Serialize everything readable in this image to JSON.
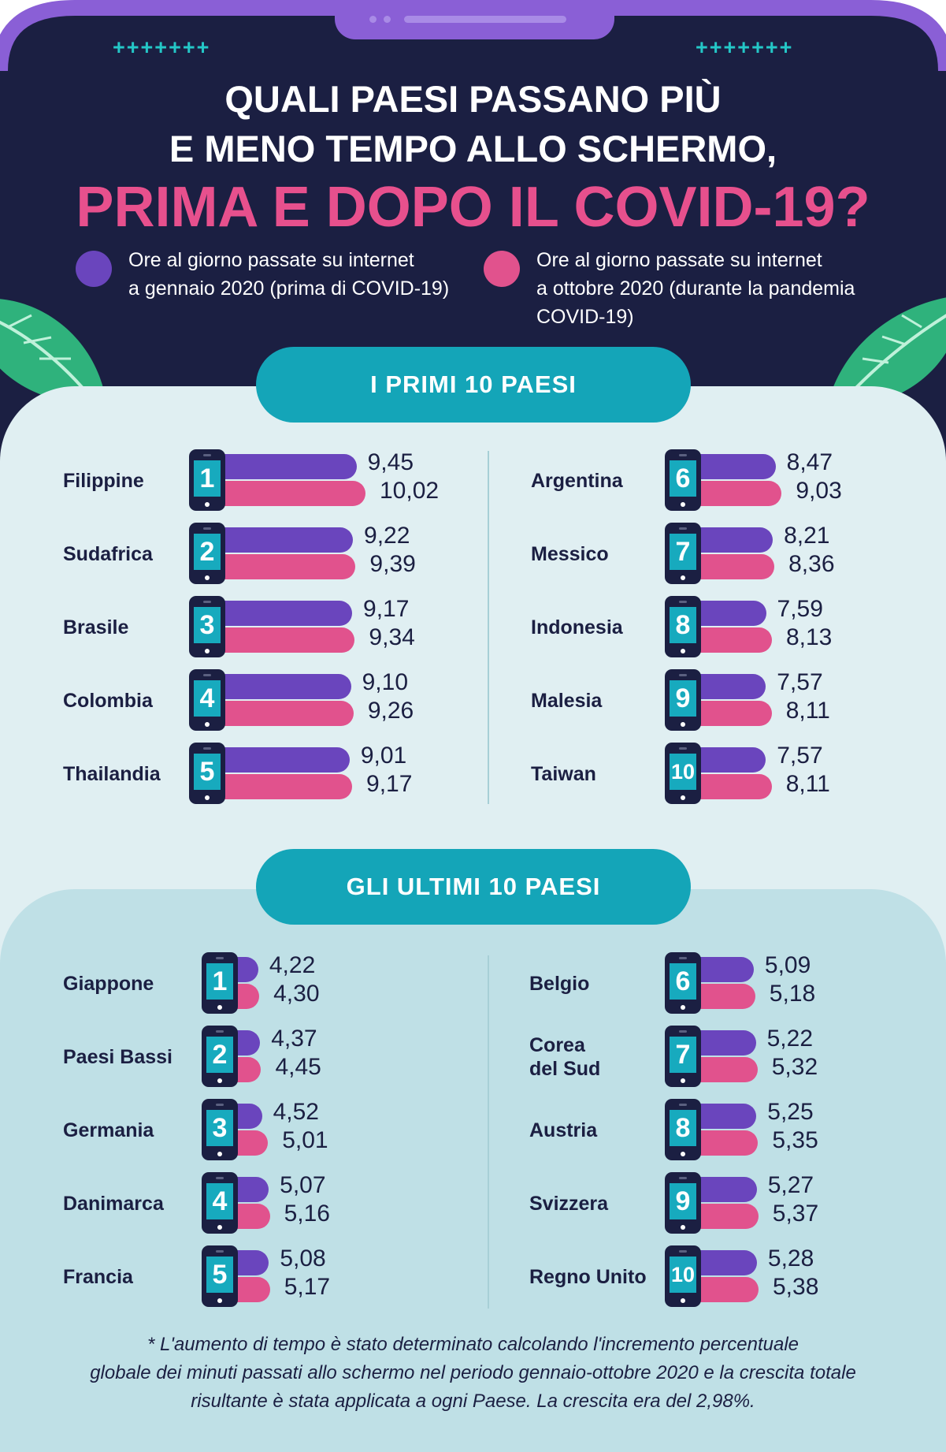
{
  "title": {
    "line1": "QUALI PAESI PASSANO PIÙ",
    "line2": "E MENO TEMPO ALLO SCHERMO,",
    "line3": "PRIMA E DOPO IL COVID-19?"
  },
  "legend": {
    "before": {
      "line1": "Ore al giorno passate su internet",
      "line2": "a gennaio 2020 (prima di COVID-19)",
      "color": "#6a45bd"
    },
    "after": {
      "line1": "Ore al giorno passate su internet",
      "line2": "a ottobre 2020 (durante la pandemia",
      "line3": "COVID-19)",
      "color": "#e1528d"
    }
  },
  "sections": {
    "top": "I PRIMI 10 PAESI",
    "bottom": "GLI ULTIMI 10 PAESI"
  },
  "footnote": {
    "line1": "* L'aumento di tempo è stato determinato calcolando l'incremento percentuale",
    "line2": "globale dei minuti passati allo schermo nel periodo gennaio-ottobre 2020 e la crescita totale",
    "line3": "risultante è stata applicata a ogni Paese. La crescita era del 2,98%."
  },
  "chart_data": [
    {
      "type": "bar",
      "title": "I PRIMI 10 PAESI",
      "unit": "ore al giorno",
      "series": [
        {
          "name": "gennaio 2020",
          "color": "#6a45bd"
        },
        {
          "name": "ottobre 2020",
          "color": "#e1528d"
        }
      ],
      "rows": [
        {
          "rank": "1",
          "country": [
            "Filippine"
          ],
          "before": 9.45,
          "after": 10.02,
          "before_label": "9,45",
          "after_label": "10,02"
        },
        {
          "rank": "2",
          "country": [
            "Sudafrica"
          ],
          "before": 9.22,
          "after": 9.39,
          "before_label": "9,22",
          "after_label": "9,39"
        },
        {
          "rank": "3",
          "country": [
            "Brasile"
          ],
          "before": 9.17,
          "after": 9.34,
          "before_label": "9,17",
          "after_label": "9,34"
        },
        {
          "rank": "4",
          "country": [
            "Colombia"
          ],
          "before": 9.1,
          "after": 9.26,
          "before_label": "9,10",
          "after_label": "9,26"
        },
        {
          "rank": "5",
          "country": [
            "Thailandia"
          ],
          "before": 9.01,
          "after": 9.17,
          "before_label": "9,01",
          "after_label": "9,17"
        },
        {
          "rank": "6",
          "country": [
            "Argentina"
          ],
          "before": 8.47,
          "after": 9.03,
          "before_label": "8,47",
          "after_label": "9,03"
        },
        {
          "rank": "7",
          "country": [
            "Messico"
          ],
          "before": 8.21,
          "after": 8.36,
          "before_label": "8,21",
          "after_label": "8,36"
        },
        {
          "rank": "8",
          "country": [
            "Indonesia"
          ],
          "before": 7.59,
          "after": 8.13,
          "before_label": "7,59",
          "after_label": "8,13"
        },
        {
          "rank": "9",
          "country": [
            "Malesia"
          ],
          "before": 7.57,
          "after": 8.11,
          "before_label": "7,57",
          "after_label": "8,11"
        },
        {
          "rank": "10",
          "country": [
            "Taiwan"
          ],
          "before": 7.57,
          "after": 8.11,
          "before_label": "7,57",
          "after_label": "8,11"
        }
      ]
    },
    {
      "type": "bar",
      "title": "GLI ULTIMI 10 PAESI",
      "unit": "ore al giorno",
      "series": [
        {
          "name": "gennaio 2020",
          "color": "#6a45bd"
        },
        {
          "name": "ottobre 2020",
          "color": "#e1528d"
        }
      ],
      "rows": [
        {
          "rank": "1",
          "country": [
            "Giappone"
          ],
          "before": 4.22,
          "after": 4.3,
          "before_label": "4,22",
          "after_label": "4,30"
        },
        {
          "rank": "2",
          "country": [
            "Paesi Bassi"
          ],
          "before": 4.37,
          "after": 4.45,
          "before_label": "4,37",
          "after_label": "4,45"
        },
        {
          "rank": "3",
          "country": [
            "Germania"
          ],
          "before": 4.52,
          "after": 5.01,
          "before_label": "4,52",
          "after_label": "5,01"
        },
        {
          "rank": "4",
          "country": [
            "Danimarca"
          ],
          "before": 5.07,
          "after": 5.16,
          "before_label": "5,07",
          "after_label": "5,16"
        },
        {
          "rank": "5",
          "country": [
            "Francia"
          ],
          "before": 5.08,
          "after": 5.17,
          "before_label": "5,08",
          "after_label": "5,17"
        },
        {
          "rank": "6",
          "country": [
            "Belgio"
          ],
          "before": 5.09,
          "after": 5.18,
          "before_label": "5,09",
          "after_label": "5,18"
        },
        {
          "rank": "7",
          "country": [
            "Corea",
            "del Sud"
          ],
          "before": 5.22,
          "after": 5.32,
          "before_label": "5,22",
          "after_label": "5,32"
        },
        {
          "rank": "8",
          "country": [
            "Austria"
          ],
          "before": 5.25,
          "after": 5.35,
          "before_label": "5,25",
          "after_label": "5,35"
        },
        {
          "rank": "9",
          "country": [
            "Svizzera"
          ],
          "before": 5.27,
          "after": 5.37,
          "before_label": "5,27",
          "after_label": "5,37"
        },
        {
          "rank": "10",
          "country": [
            "Regno Unito"
          ],
          "before": 5.28,
          "after": 5.38,
          "before_label": "5,28",
          "after_label": "5,38"
        }
      ]
    }
  ]
}
